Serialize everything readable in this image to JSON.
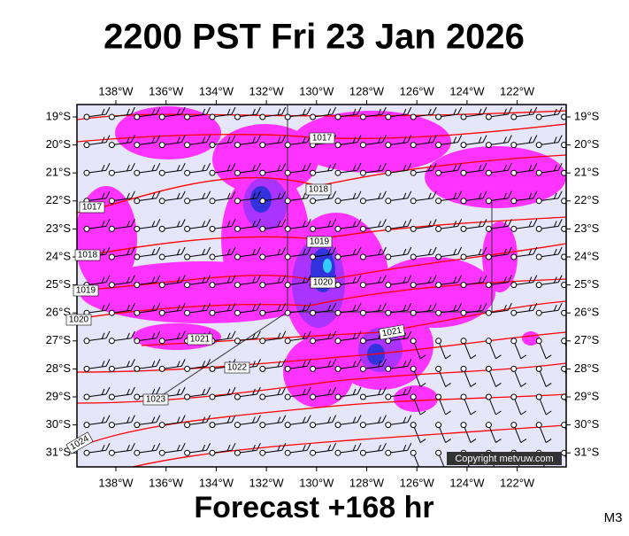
{
  "header": {
    "title": "2200 PST Fri 23 Jan 2026"
  },
  "map": {
    "lon_labels": [
      "138°W",
      "136°W",
      "134°W",
      "132°W",
      "130°W",
      "128°W",
      "126°W",
      "124°W",
      "122°W"
    ],
    "lat_labels": [
      "19°S",
      "20°S",
      "21°S",
      "22°S",
      "23°S",
      "24°S",
      "25°S",
      "26°S",
      "27°S",
      "28°S",
      "29°S",
      "30°S",
      "31°S"
    ],
    "isobar_labels": [
      "1017",
      "1018",
      "1017",
      "1019",
      "1018",
      "1019",
      "1020",
      "1020",
      "1021",
      "1021",
      "1022",
      "1023",
      "1024"
    ],
    "copyright": "Copyright metvuw.com"
  },
  "footer": {
    "forecast": "Forecast +168 hr",
    "model": "M3"
  }
}
